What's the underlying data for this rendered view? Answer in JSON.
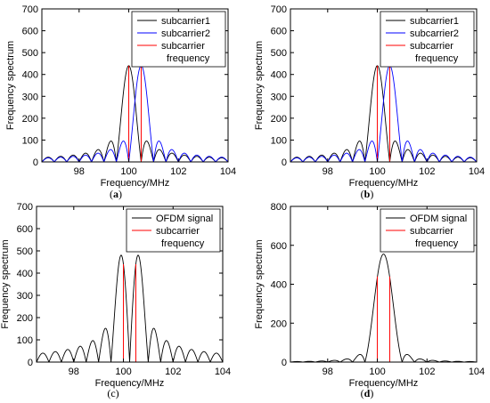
{
  "chart_data": [
    {
      "id": "a",
      "type": "line",
      "caption_open": "(",
      "caption_letter": "a",
      "caption_close": ")",
      "caption_bold": true,
      "xlabel": "Frequency/MHz",
      "ylabel": "Frequency spectrum",
      "xlim": [
        96.5,
        104
      ],
      "ylim": [
        0,
        700
      ],
      "xticks": [
        98,
        100,
        102,
        104
      ],
      "yticks": [
        0,
        100,
        200,
        300,
        400,
        500,
        600,
        700
      ],
      "legend": "top-right",
      "legend_entries": [
        {
          "text": "subcarrier1",
          "color": "#000000"
        },
        {
          "text": "subcarrier2",
          "color": "#0000ff"
        },
        {
          "text": "subcarrier",
          "text2": "frequency",
          "color": "#ff0000"
        }
      ],
      "series": [
        {
          "name": "subcarrier1",
          "kind": "sinc",
          "center": 100.0,
          "amplitude": 440,
          "color": "#000000"
        },
        {
          "name": "subcarrier2",
          "kind": "sinc",
          "center": 100.5,
          "amplitude": 440,
          "color": "#0000ff"
        },
        {
          "name": "subcarrier frequency",
          "kind": "stems",
          "x": [
            100.0,
            100.5
          ],
          "height": 440,
          "color": "#ff0000"
        }
      ]
    },
    {
      "id": "b",
      "type": "line",
      "caption_open": "(",
      "caption_letter": "b",
      "caption_close": ")",
      "caption_bold": true,
      "xlabel": "Frequency/MHz",
      "ylabel": "Frequency spectrum",
      "xlim": [
        96.5,
        104
      ],
      "ylim": [
        0,
        700
      ],
      "xticks": [
        98,
        100,
        102,
        104
      ],
      "yticks": [
        0,
        100,
        200,
        300,
        400,
        500,
        600,
        700
      ],
      "legend": "top-right",
      "legend_entries": [
        {
          "text": "subcarrier1",
          "color": "#000000"
        },
        {
          "text": "subcarrier2",
          "color": "#0000ff"
        },
        {
          "text": "subcarrier",
          "text2": "frequency",
          "color": "#ff0000"
        }
      ],
      "series": [
        {
          "name": "subcarrier1",
          "kind": "sinc",
          "center": 100.0,
          "amplitude": 440,
          "color": "#000000"
        },
        {
          "name": "subcarrier2",
          "kind": "sinc",
          "center": 100.5,
          "amplitude": 440,
          "color": "#0000ff"
        },
        {
          "name": "subcarrier frequency",
          "kind": "stems",
          "x": [
            100.0,
            100.5
          ],
          "height": 440,
          "color": "#ff0000"
        }
      ]
    },
    {
      "id": "c",
      "type": "line",
      "caption_open": "(",
      "caption_letter": "c",
      "caption_close": ")",
      "caption_bold": false,
      "xlabel": "Frequency/MHz",
      "ylabel": "Frequency spectrum",
      "xlim": [
        96.5,
        104
      ],
      "ylim": [
        0,
        700
      ],
      "xticks": [
        98,
        100,
        102,
        104
      ],
      "yticks": [
        0,
        100,
        200,
        300,
        400,
        500,
        600,
        700
      ],
      "legend": "top-right",
      "legend_entries": [
        {
          "text": "OFDM signal",
          "color": "#000000"
        },
        {
          "text": "subcarrier",
          "text2": "frequency",
          "color": "#ff0000"
        }
      ],
      "series": [
        {
          "name": "OFDM signal",
          "kind": "diff",
          "centers": [
            100.0,
            100.5
          ],
          "amplitude": 440,
          "color": "#000000"
        },
        {
          "name": "subcarrier frequency",
          "kind": "stems",
          "x": [
            100.0,
            100.5
          ],
          "height": 440,
          "color": "#ff0000"
        }
      ]
    },
    {
      "id": "d",
      "type": "line",
      "caption_open": "(",
      "caption_letter": "d",
      "caption_close": ")",
      "caption_bold": true,
      "xlabel": "Frequency/MHz",
      "ylabel": "Frequency spectrum",
      "xlim": [
        96.5,
        104
      ],
      "ylim": [
        0,
        800
      ],
      "xticks": [
        98,
        100,
        102,
        104
      ],
      "yticks": [
        0,
        200,
        400,
        600,
        800
      ],
      "legend": "top-right",
      "legend_entries": [
        {
          "text": "OFDM signal",
          "color": "#000000"
        },
        {
          "text": "subcarrier",
          "text2": "frequency",
          "color": "#ff0000"
        }
      ],
      "series": [
        {
          "name": "OFDM signal",
          "kind": "sum",
          "centers": [
            100.0,
            100.5
          ],
          "amplitude": 440,
          "peak": 555,
          "color": "#000000"
        },
        {
          "name": "subcarrier frequency",
          "kind": "stems",
          "x": [
            100.0,
            100.5
          ],
          "height": 440,
          "color": "#ff0000"
        }
      ]
    }
  ]
}
